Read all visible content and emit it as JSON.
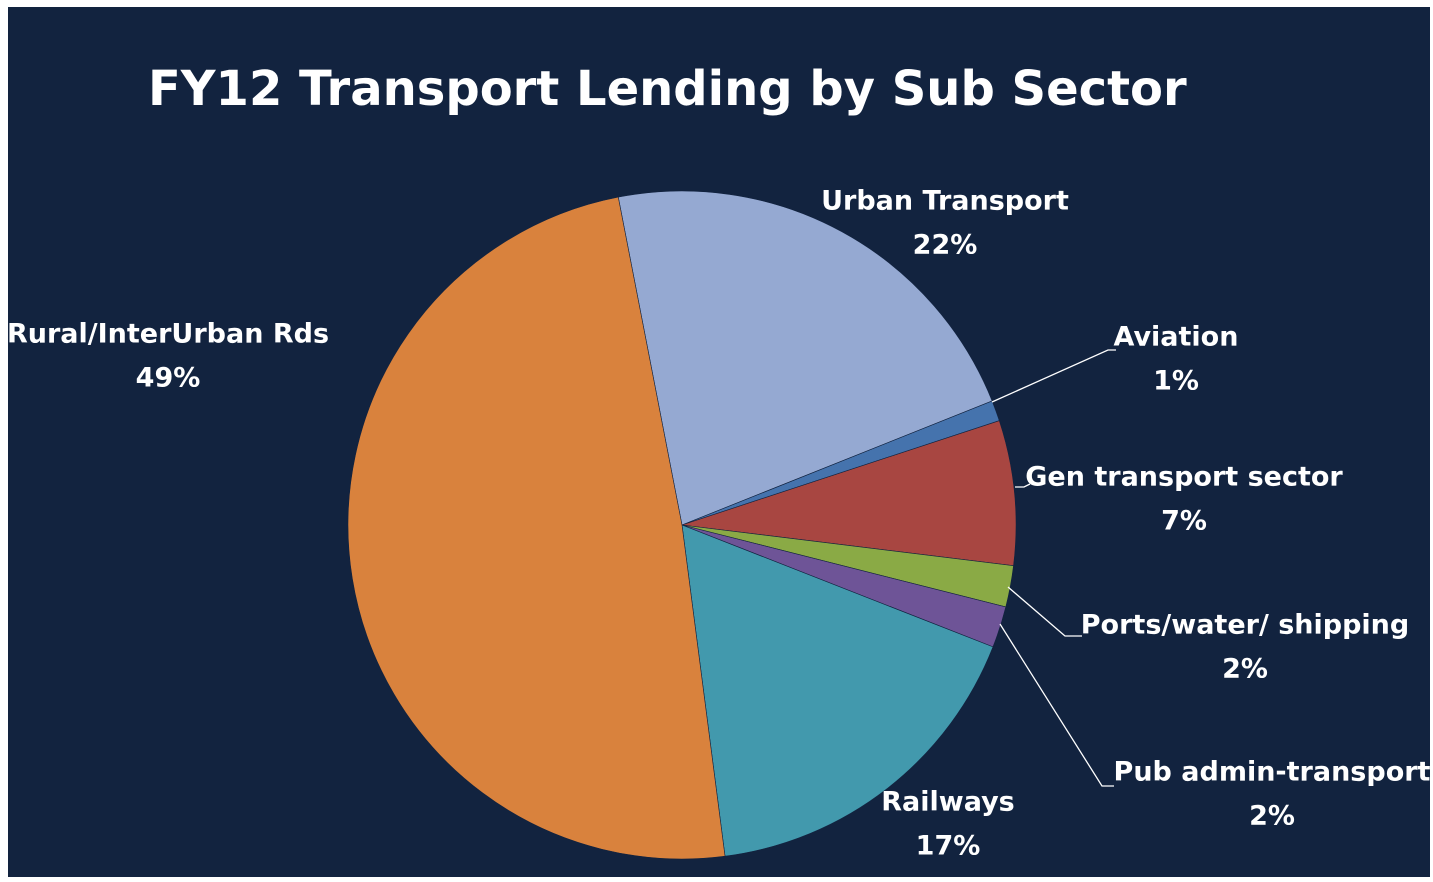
{
  "chart_data": {
    "type": "pie",
    "title": "FY12 Transport  Lending by Sub Sector",
    "categories": [
      "Urban Transport",
      "Aviation",
      "Gen transport sector",
      "Ports/water/ shipping",
      "Pub admin-transport",
      "Railways",
      "Rural/InterUrban Rds"
    ],
    "values": [
      22,
      1,
      7,
      2,
      2,
      17,
      49
    ],
    "value_labels": [
      "22%",
      "1%",
      "7%",
      "2%",
      "2%",
      "17%",
      "49%"
    ],
    "colors": [
      "#95a9d2",
      "#4573ad",
      "#a84641",
      "#8aaa45",
      "#6e5497",
      "#4299ad",
      "#d9823d"
    ]
  }
}
